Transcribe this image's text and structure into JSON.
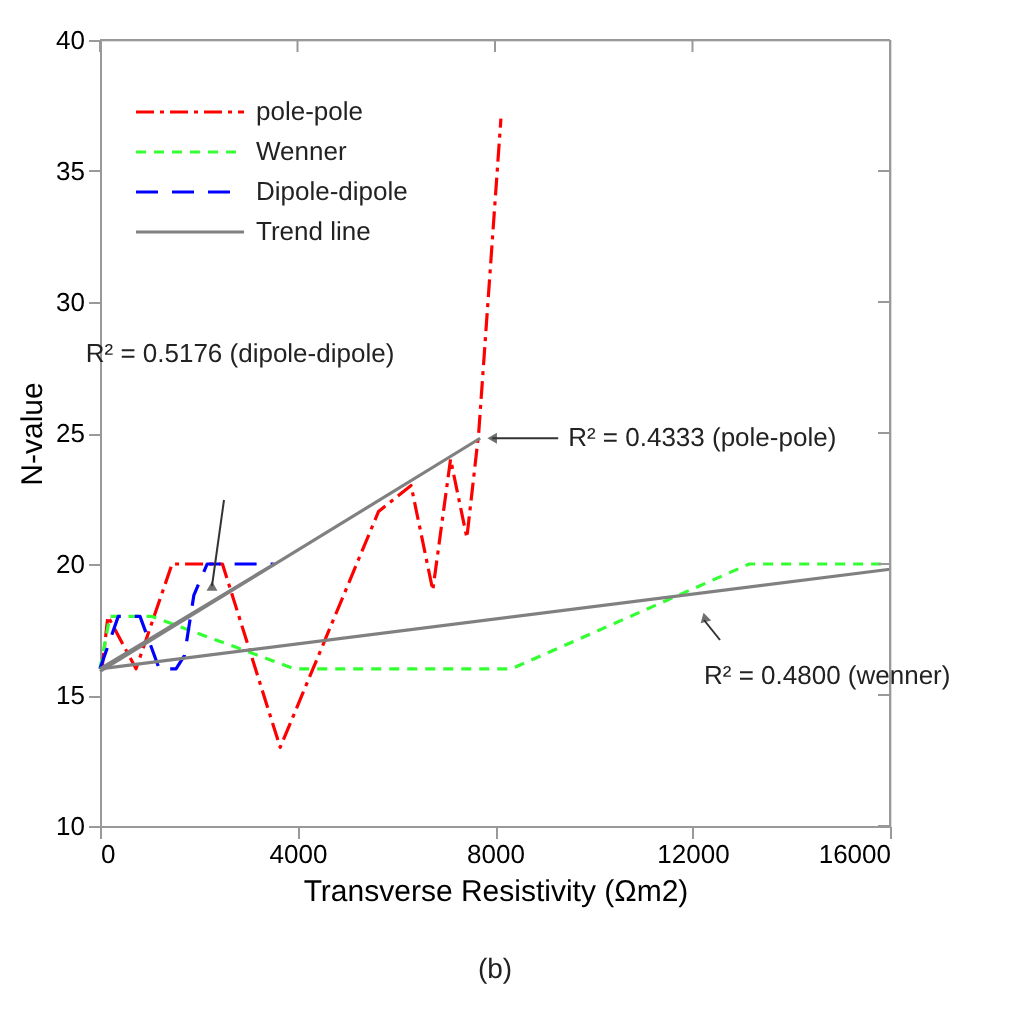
{
  "chart_data": {
    "type": "line",
    "xlabel": "Transverse Resistivity (Ωm2)",
    "ylabel": "N-value",
    "xlim": [
      0,
      16000
    ],
    "ylim": [
      10,
      40
    ],
    "xticks": [
      0,
      4000,
      8000,
      12000,
      16000
    ],
    "yticks": [
      10,
      15,
      20,
      25,
      30,
      35,
      40
    ],
    "legend": "top left",
    "grid": false,
    "marker": "none",
    "series": [
      {
        "name": "pole-pole",
        "color": "#ff0000",
        "line_style": "dashed",
        "x": [
          0,
          40,
          160,
          730,
          1460,
          2480,
          3650,
          5640,
          6300,
          6740,
          7100,
          7430,
          7670,
          8120
        ],
        "values": [
          16,
          16,
          18,
          16,
          20,
          20,
          13,
          22,
          23,
          19,
          24,
          21,
          25,
          37
        ]
      },
      {
        "name": "Wenner",
        "color": "#33ff33",
        "line_style": "dashed",
        "x": [
          0,
          200,
          1050,
          3940,
          8330,
          13150,
          16000
        ],
        "values": [
          16,
          18,
          18,
          16,
          16,
          20,
          20
        ]
      },
      {
        "name": "Dipole-dipole",
        "color": "#0000ff",
        "line_style": "dashed",
        "x": [
          0,
          370,
          810,
          1200,
          1540,
          1710,
          1900,
          2170,
          3530
        ],
        "values": [
          16,
          18,
          18,
          16,
          16,
          16.5,
          18.8,
          20,
          20
        ]
      },
      {
        "name": "Trend line",
        "color": "#808080",
        "line_style": "solid",
        "x": [
          0,
          7700
        ],
        "values": [
          15.9,
          24.8
        ]
      },
      {
        "color": "#808080",
        "line_style": "solid",
        "x": [
          0,
          3530
        ],
        "values": [
          16,
          20
        ]
      },
      {
        "color": "#808080",
        "line_style": "solid",
        "x": [
          0,
          16000
        ],
        "values": [
          16,
          19.8
        ]
      }
    ],
    "annotations": [
      {
        "text": "R² = 0.4333 (pole-pole)",
        "x": 7700,
        "y": 24.8
      },
      "R² = 0.5176 (dipole-dipole)",
      "R² = 0.4800 (wenner)",
      "(b)"
    ]
  }
}
